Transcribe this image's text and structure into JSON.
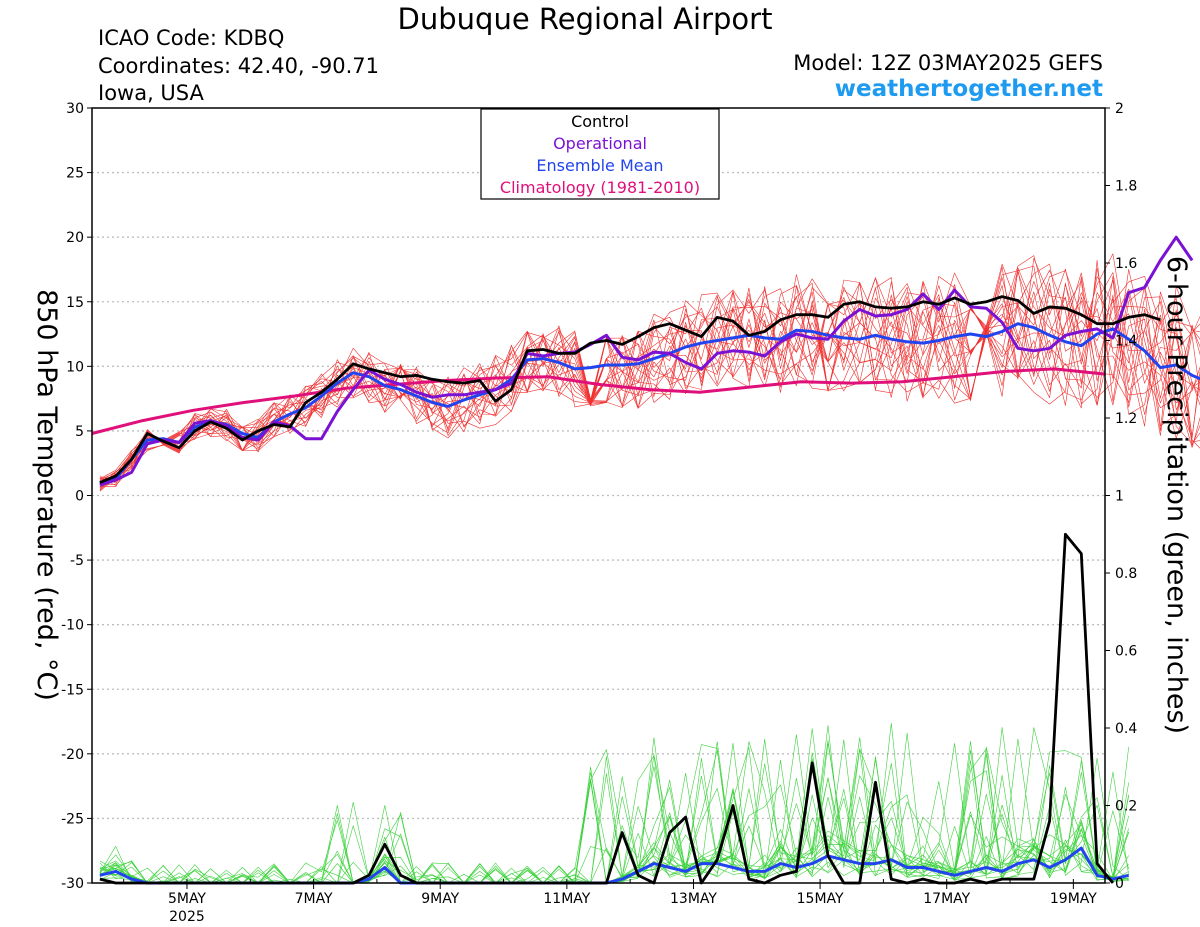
{
  "header": {
    "title": "Dubuque Regional Airport",
    "icao": "ICAO Code: KDBQ",
    "coords": "Coordinates: 42.40, -90.71",
    "location": "Iowa, USA",
    "model": "Model: 12Z 03MAY2025 GEFS",
    "site": "weathertogether.net"
  },
  "chart_data": {
    "type": "line",
    "ylabel": "850 hPa Temperature (red, °C)",
    "y2label": "6-hour Precipitation (green, inches)",
    "xlim": [
      "2025-05-03T12:00",
      "2025-05-19T12:00"
    ],
    "ylim": [
      -30,
      30
    ],
    "y2lim": [
      0,
      2
    ],
    "grid": true,
    "x_ticks": [
      {
        "date": "2025-05-05",
        "label": "5MAY",
        "sublabel": "2025"
      },
      {
        "date": "2025-05-07",
        "label": "7MAY"
      },
      {
        "date": "2025-05-09",
        "label": "9MAY"
      },
      {
        "date": "2025-05-11",
        "label": "11MAY"
      },
      {
        "date": "2025-05-13",
        "label": "13MAY"
      },
      {
        "date": "2025-05-15",
        "label": "15MAY"
      },
      {
        "date": "2025-05-17",
        "label": "17MAY"
      },
      {
        "date": "2025-05-19",
        "label": "19MAY"
      }
    ],
    "y_ticks": [
      30,
      25,
      20,
      15,
      10,
      5,
      0,
      -5,
      -10,
      -15,
      -20,
      -25,
      -30
    ],
    "y2_ticks": [
      2,
      1.8,
      1.6,
      1.4,
      1.2,
      1,
      0.8,
      0.6,
      0.4,
      0.2,
      0
    ],
    "legend": {
      "placement": "top-center",
      "entries": [
        {
          "label": "Control",
          "color": "#000000"
        },
        {
          "label": "Operational",
          "color": "#7a12d4"
        },
        {
          "label": "Ensemble Mean",
          "color": "#2244ee"
        },
        {
          "label": "Climatology (1981-2010)",
          "color": "#e0107a"
        }
      ]
    },
    "temperature": {
      "step_hours": 6,
      "control": [
        1,
        1.5,
        2.8,
        4.8,
        4.2,
        3.7,
        5,
        5.7,
        5.2,
        4.3,
        5,
        5.5,
        5.3,
        7.2,
        8,
        9,
        10.2,
        9.8,
        9.5,
        9.2,
        9.3,
        9,
        8.8,
        8.7,
        8.9,
        7.3,
        8.2,
        11.2,
        11.3,
        11,
        11,
        11.8,
        12,
        11.7,
        12.3,
        13,
        13.3,
        12.8,
        12.3,
        13.8,
        13.5,
        12.4,
        12.7,
        13.6,
        14,
        14,
        13.8,
        14.8,
        15,
        14.6,
        14.5,
        14.6,
        15,
        14.8,
        15.3,
        14.8,
        15,
        15.4,
        15.1,
        14.1,
        14.6,
        14.5,
        14,
        13.3,
        13.3,
        13.8,
        14,
        13.6
      ],
      "operational": [
        0.8,
        1.2,
        1.8,
        4,
        4.3,
        4.1,
        5.6,
        5.8,
        5.4,
        4.5,
        4.3,
        5.7,
        5.4,
        4.4,
        4.4,
        6.5,
        8.2,
        9.7,
        9,
        8.6,
        8,
        7.6,
        7.8,
        7.8,
        8,
        8.2,
        8.7,
        11,
        10.8,
        11,
        11.1,
        11.7,
        12.4,
        10.7,
        10.5,
        11.1,
        11,
        10.3,
        9.8,
        11,
        11.2,
        11.1,
        10.8,
        11.9,
        12.5,
        12.2,
        12.1,
        13.5,
        14.4,
        13.9,
        14,
        14.4,
        15.6,
        14.4,
        15.9,
        14.6,
        14.5,
        13.4,
        11.4,
        11.2,
        11.4,
        12.4,
        12.7,
        12.9,
        12.2,
        15.7,
        16.1,
        18.2,
        20,
        18.2
      ],
      "ensemble_mean": [
        0.9,
        1.3,
        2.8,
        4.3,
        4.4,
        4.1,
        5.3,
        5.7,
        5.5,
        4.8,
        4.5,
        5.7,
        6.3,
        6.8,
        7.7,
        8.7,
        9.5,
        9.2,
        8.5,
        8.2,
        7.7,
        7.2,
        6.9,
        7.4,
        7.8,
        8.2,
        9,
        10.5,
        10.6,
        10.3,
        9.8,
        9.9,
        10.1,
        10.1,
        10.2,
        10.6,
        11,
        11.5,
        11.8,
        12,
        12.2,
        12.4,
        12.2,
        12.1,
        12.8,
        12.7,
        12.4,
        12.2,
        12.1,
        12.4,
        12.1,
        11.9,
        11.8,
        12,
        12.3,
        12.5,
        12.3,
        12.7,
        13.3,
        13,
        12.4,
        11.9,
        11.6,
        12.5,
        12.9,
        12.1,
        11.2,
        9.9,
        10.1,
        9.3,
        8.8
      ],
      "climatology": [
        4.8,
        5.8,
        6.6,
        7.2,
        7.7,
        8.3,
        8.6,
        8.9,
        9.1,
        9.2,
        8.6,
        8.2,
        8,
        8.4,
        8.8,
        8.7,
        8.8,
        9.2,
        9.6,
        9.8,
        9.4
      ]
    },
    "precipitation": {
      "step_hours": 6,
      "control": [
        0.01,
        0,
        0,
        0,
        0,
        0,
        0,
        0,
        0,
        0,
        0,
        0,
        0,
        0,
        0,
        0,
        0,
        0.02,
        0.1,
        0.02,
        0,
        0,
        0,
        0,
        0,
        0,
        0,
        0,
        0,
        0,
        0,
        0,
        0,
        0.13,
        0.02,
        0,
        0.13,
        0.17,
        0,
        0.06,
        0.2,
        0.01,
        0,
        0.02,
        0.03,
        0.31,
        0.07,
        0,
        0,
        0.26,
        0.01,
        0,
        0.01,
        0,
        0,
        0.01,
        0,
        0.01,
        0.01,
        0.01,
        0.16,
        0.9,
        0.85,
        0.05,
        0
      ],
      "ensemble_mean": [
        0.02,
        0.03,
        0.01,
        0,
        0,
        0,
        0,
        0,
        0,
        0,
        0,
        0,
        0,
        0,
        0,
        0,
        0,
        0.01,
        0.04,
        0,
        0,
        0,
        0,
        0,
        0,
        0,
        0,
        0,
        0,
        0,
        0,
        0,
        0,
        0.01,
        0.03,
        0.05,
        0.04,
        0.03,
        0.05,
        0.05,
        0.04,
        0.03,
        0.03,
        0.05,
        0.04,
        0.05,
        0.07,
        0.06,
        0.05,
        0.05,
        0.06,
        0.04,
        0.04,
        0.03,
        0.02,
        0.03,
        0.04,
        0.03,
        0.05,
        0.06,
        0.04,
        0.06,
        0.09,
        0.02,
        0.01,
        0.02
      ]
    }
  }
}
